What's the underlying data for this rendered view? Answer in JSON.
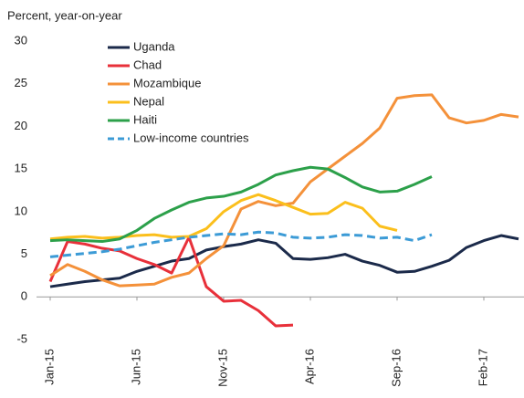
{
  "chart_data": {
    "type": "line",
    "title": "Percent, year-on-year",
    "categories": [
      "Jan-15",
      null,
      null,
      null,
      null,
      "Jun-15",
      null,
      null,
      null,
      null,
      "Nov-15",
      null,
      null,
      null,
      null,
      "Apr-16",
      null,
      null,
      null,
      null,
      "Sep-16",
      null,
      null,
      null,
      null,
      "Feb-17",
      null,
      null
    ],
    "series": [
      {
        "name": "Uganda",
        "color": "#1b2a4a",
        "dashed": false,
        "values": [
          1.2,
          1.5,
          1.8,
          2.0,
          2.2,
          3.0,
          3.6,
          4.2,
          4.5,
          5.5,
          5.9,
          6.2,
          6.7,
          6.3,
          4.5,
          4.4,
          4.6,
          5.0,
          4.2,
          3.7,
          2.9,
          3.0,
          3.6,
          4.3,
          5.8,
          6.6,
          7.2,
          6.8
        ]
      },
      {
        "name": "Chad",
        "color": "#e8303a",
        "dashed": false,
        "values": [
          1.8,
          6.5,
          6.2,
          5.7,
          5.4,
          4.5,
          3.8,
          2.8,
          7.0,
          1.2,
          -0.5,
          -0.4,
          -1.6,
          -3.4,
          -3.3,
          null,
          null,
          null,
          null,
          null,
          null,
          null,
          null,
          null,
          null,
          null,
          null,
          null
        ]
      },
      {
        "name": "Mozambique",
        "color": "#f4913a",
        "dashed": false,
        "values": [
          2.5,
          3.8,
          3.0,
          2.0,
          1.3,
          1.4,
          1.5,
          2.3,
          2.8,
          4.5,
          6.0,
          10.3,
          11.2,
          10.7,
          11.0,
          13.5,
          15.0,
          16.5,
          18.0,
          19.8,
          23.3,
          23.6,
          23.7,
          21.0,
          20.4,
          20.7,
          21.4,
          21.1
        ]
      },
      {
        "name": "Nepal",
        "color": "#fbbf1c",
        "dashed": false,
        "values": [
          6.8,
          7.0,
          7.1,
          6.9,
          7.0,
          7.2,
          7.3,
          7.0,
          7.1,
          8.0,
          10.0,
          11.3,
          12.0,
          11.3,
          10.5,
          9.7,
          9.8,
          11.1,
          10.4,
          8.3,
          7.8,
          null,
          null,
          null,
          null,
          null,
          null,
          null
        ]
      },
      {
        "name": "Haiti",
        "color": "#2ca04a",
        "dashed": false,
        "values": [
          6.6,
          6.7,
          6.6,
          6.5,
          6.8,
          7.8,
          9.2,
          10.2,
          11.1,
          11.6,
          11.8,
          12.3,
          13.2,
          14.3,
          14.8,
          15.2,
          15.0,
          14.0,
          12.9,
          12.3,
          12.4,
          13.2,
          14.1,
          null,
          null,
          null,
          null,
          null
        ]
      },
      {
        "name": "Low-income countries",
        "color": "#3c9bd6",
        "dashed": true,
        "values": [
          4.7,
          4.9,
          5.1,
          5.3,
          5.6,
          6.0,
          6.4,
          6.7,
          7.0,
          7.2,
          7.4,
          7.3,
          7.6,
          7.5,
          7.0,
          6.9,
          7.0,
          7.3,
          7.2,
          6.9,
          7.0,
          6.6,
          7.3,
          null,
          null,
          null,
          null,
          null
        ]
      }
    ],
    "ylim": [
      -5,
      30
    ],
    "yticks": [
      -5,
      0,
      5,
      10,
      15,
      20,
      25,
      30
    ]
  }
}
